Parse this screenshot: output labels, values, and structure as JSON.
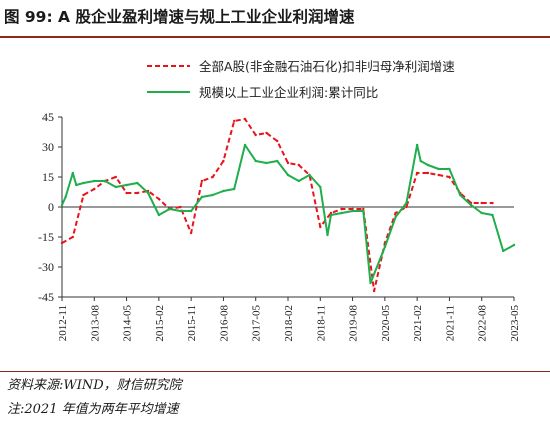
{
  "header": {
    "title": "图 99:  A 股企业盈利增速与规上工业企业利润增速"
  },
  "footer": {
    "source": "资料来源:WIND，财信研究院",
    "note": "注:2021 年值为两年平均增速"
  },
  "chart_data": {
    "type": "line",
    "title": "",
    "xlabel": "",
    "ylabel": "",
    "ylim": [
      -45,
      45
    ],
    "yticks": [
      45,
      30,
      15,
      0,
      -15,
      -30,
      -45
    ],
    "xticks": [
      "2012-11",
      "2013-08",
      "2014-05",
      "2015-02",
      "2015-11",
      "2016-08",
      "2017-05",
      "2018-02",
      "2018-11",
      "2019-08",
      "2020-05",
      "2021-02",
      "2021-11",
      "2022-08",
      "2023-05"
    ],
    "legend_position": "top",
    "grid": false,
    "series": [
      {
        "name": "全部A股(非金融石油石化)扣非归母净利润增速",
        "style": "dashed",
        "color": "#e8141c",
        "points": [
          [
            "2012-11",
            -18
          ],
          [
            "2013-02",
            -15
          ],
          [
            "2013-05",
            6
          ],
          [
            "2013-08",
            9
          ],
          [
            "2013-11",
            13
          ],
          [
            "2014-02",
            15
          ],
          [
            "2014-05",
            7
          ],
          [
            "2014-08",
            7
          ],
          [
            "2014-11",
            8
          ],
          [
            "2015-02",
            4
          ],
          [
            "2015-05",
            -1
          ],
          [
            "2015-08",
            0
          ],
          [
            "2015-11",
            -13
          ],
          [
            "2016-02",
            13
          ],
          [
            "2016-05",
            15
          ],
          [
            "2016-08",
            23
          ],
          [
            "2016-11",
            43
          ],
          [
            "2017-02",
            44
          ],
          [
            "2017-05",
            36
          ],
          [
            "2017-08",
            37
          ],
          [
            "2017-11",
            33
          ],
          [
            "2018-02",
            22
          ],
          [
            "2018-05",
            21
          ],
          [
            "2018-08",
            16
          ],
          [
            "2018-11",
            -10
          ],
          [
            "2019-02",
            -3
          ],
          [
            "2019-05",
            -1
          ],
          [
            "2019-08",
            -1
          ],
          [
            "2019-11",
            -1
          ],
          [
            "2020-02",
            -42
          ],
          [
            "2020-05",
            -18
          ],
          [
            "2020-08",
            -3
          ],
          [
            "2020-11",
            0
          ],
          [
            "2021-02",
            17
          ],
          [
            "2021-05",
            17
          ],
          [
            "2021-08",
            16
          ],
          [
            "2021-11",
            15
          ],
          [
            "2022-02",
            7
          ],
          [
            "2022-05",
            2
          ],
          [
            "2022-08",
            2
          ],
          [
            "2022-11",
            2
          ]
        ]
      },
      {
        "name": "规模以上工业企业利润:累计同比",
        "style": "solid",
        "color": "#1fae4b",
        "points": [
          [
            "2012-11",
            1
          ],
          [
            "2012-12",
            5
          ],
          [
            "2013-02",
            17
          ],
          [
            "2013-03",
            11
          ],
          [
            "2013-05",
            12
          ],
          [
            "2013-08",
            13
          ],
          [
            "2013-11",
            13
          ],
          [
            "2014-02",
            10
          ],
          [
            "2014-05",
            11
          ],
          [
            "2014-08",
            12
          ],
          [
            "2014-11",
            7
          ],
          [
            "2015-02",
            -4
          ],
          [
            "2015-05",
            -1
          ],
          [
            "2015-08",
            -2
          ],
          [
            "2015-11",
            -2
          ],
          [
            "2016-02",
            5
          ],
          [
            "2016-05",
            6
          ],
          [
            "2016-08",
            8
          ],
          [
            "2016-11",
            9
          ],
          [
            "2017-02",
            31
          ],
          [
            "2017-05",
            23
          ],
          [
            "2017-08",
            22
          ],
          [
            "2017-11",
            23
          ],
          [
            "2018-02",
            16
          ],
          [
            "2018-05",
            13
          ],
          [
            "2018-08",
            16
          ],
          [
            "2018-11",
            10
          ],
          [
            "2019-01",
            -14
          ],
          [
            "2019-02",
            -4
          ],
          [
            "2019-05",
            -3
          ],
          [
            "2019-08",
            -2
          ],
          [
            "2019-11",
            -2
          ],
          [
            "2020-01",
            -38
          ],
          [
            "2020-05",
            -20
          ],
          [
            "2020-08",
            -5
          ],
          [
            "2020-11",
            2
          ],
          [
            "2021-02",
            31
          ],
          [
            "2021-03",
            23
          ],
          [
            "2021-05",
            21
          ],
          [
            "2021-08",
            19
          ],
          [
            "2021-11",
            19
          ],
          [
            "2022-02",
            6
          ],
          [
            "2022-05",
            1
          ],
          [
            "2022-08",
            -3
          ],
          [
            "2022-11",
            -4
          ],
          [
            "2023-02",
            -22
          ],
          [
            "2023-05",
            -19
          ]
        ]
      }
    ]
  }
}
